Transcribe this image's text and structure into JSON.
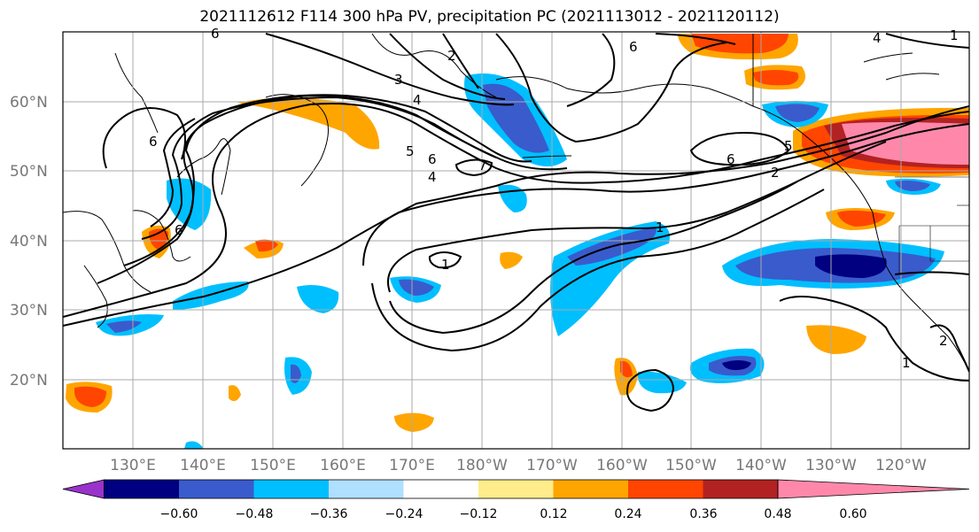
{
  "title": "2021112612 F114 300 hPa PV, precipitation PC (2021113012 - 2021120112)",
  "lat_labels": [
    {
      "text": "60°N",
      "lat": 60
    },
    {
      "text": "50°N",
      "lat": 50
    },
    {
      "text": "40°N",
      "lat": 40
    },
    {
      "text": "30°N",
      "lat": 30
    },
    {
      "text": "20°N",
      "lat": 20
    }
  ],
  "lon_labels": [
    {
      "text": "130°E",
      "lon": 130
    },
    {
      "text": "140°E",
      "lon": 140
    },
    {
      "text": "150°E",
      "lon": 150
    },
    {
      "text": "160°E",
      "lon": 160
    },
    {
      "text": "170°E",
      "lon": 170
    },
    {
      "text": "180°W",
      "lon": 180
    },
    {
      "text": "170°W",
      "lon": 190
    },
    {
      "text": "160°W",
      "lon": 200
    },
    {
      "text": "150°W",
      "lon": 210
    },
    {
      "text": "140°W",
      "lon": 220
    },
    {
      "text": "130°W",
      "lon": 230
    },
    {
      "text": "120°W",
      "lon": 240
    }
  ],
  "contour_labels": [
    "6",
    "3",
    "4",
    "7",
    "6",
    "5",
    "4",
    "6",
    "2",
    "5",
    "6",
    "6",
    "2",
    "6",
    "1",
    "1",
    "1",
    "2",
    "1",
    "4"
  ],
  "colorbar": {
    "ticks": [
      "−0.60",
      "−0.48",
      "−0.36",
      "−0.24",
      "−0.12",
      "0.12",
      "0.24",
      "0.36",
      "0.48",
      "0.60"
    ],
    "colors": [
      "#9933cc",
      "#000080",
      "#3a5bcc",
      "#00bfff",
      "#b0e0ff",
      "#ffffff",
      "#ffec8b",
      "#ffa500",
      "#ff4500",
      "#b22222",
      "#ff88aa"
    ]
  }
}
